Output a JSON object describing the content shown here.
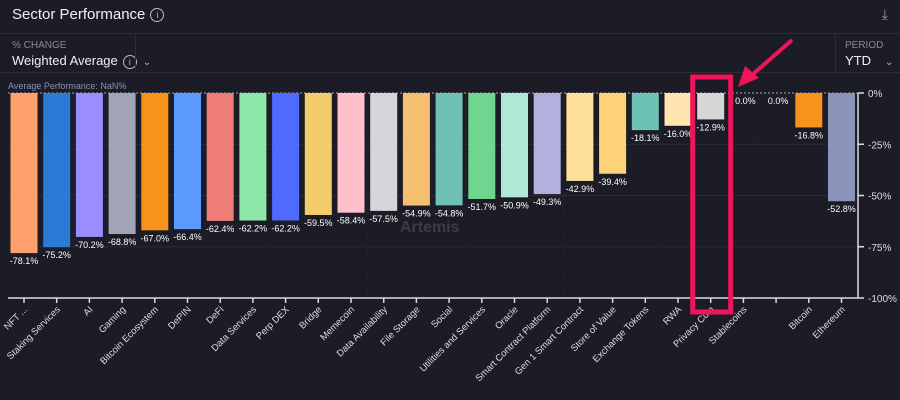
{
  "header": {
    "title": "Sector Performance",
    "info_icon": "info-icon",
    "download_icon": "download-icon"
  },
  "controls": {
    "change": {
      "label": "% CHANGE",
      "value": "Weighted Average"
    },
    "period": {
      "label": "PERIOD",
      "value": "YTD"
    }
  },
  "chart_data": {
    "type": "bar",
    "annotation": "Average Performance: NaN%",
    "ylim": [
      -100,
      0
    ],
    "yticks": [
      "0%",
      "-25%",
      "-50%",
      "-75%",
      "-100%"
    ],
    "ytick_values": [
      0,
      -25,
      -50,
      -75,
      -100
    ],
    "categories": [
      "NFT ...",
      "Staking Services",
      "AI",
      "Gaming",
      "Bitcoin Ecosystem",
      "DePIN",
      "DeFi",
      "Data Services",
      "Perp DEX",
      "Bridge",
      "Memecoin",
      "Data Availability",
      "File Storage",
      "Social",
      "Utilities and Services",
      "Oracle",
      "Smart Contract Platform",
      "Gen 1 Smart Contract",
      "Store of Value",
      "Exchange Tokens",
      "RWA",
      "Privacy Coin",
      "Stablecoins",
      "",
      "Bitcoin",
      "Ethereum"
    ],
    "values": [
      -78.1,
      -75.2,
      -70.2,
      -68.8,
      -67.0,
      -66.4,
      -62.4,
      -62.2,
      -62.2,
      -59.5,
      -58.4,
      -57.5,
      -54.9,
      -54.8,
      -51.7,
      -50.9,
      -49.3,
      -42.9,
      -39.4,
      -18.1,
      -16.0,
      -12.9,
      0.0,
      0.0,
      -16.8,
      -52.8
    ],
    "labels": [
      "-78.1%",
      "-75.2%",
      "-70.2%",
      "-68.8%",
      "-67.0%",
      "-66.4%",
      "-62.4%",
      "-62.2%",
      "-62.2%",
      "-59.5%",
      "-58.4%",
      "-57.5%",
      "-54.9%",
      "-54.8%",
      "-51.7%",
      "-50.9%",
      "-49.3%",
      "-42.9%",
      "-39.4%",
      "-18.1%",
      "-16.0%",
      "-12.9%",
      "0.0%",
      "0.0%",
      "-16.8%",
      "-52.8%"
    ],
    "colors": [
      "#ff9f6b",
      "#2b7bd6",
      "#9b8cff",
      "#a3a3b8",
      "#f7931a",
      "#5b9bff",
      "#f07c78",
      "#8ee6a8",
      "#4f6bff",
      "#f2cc6b",
      "#ffc0cb",
      "#d5d5d8",
      "#f4bf6f",
      "#6fc1b3",
      "#6fd68f",
      "#b0e8d8",
      "#b3b0dd",
      "#ffe09a",
      "#ffd27a",
      "#6cc3b5",
      "#ffe5b0",
      "#d6d6d6",
      "#888888",
      "#888888",
      "#f7931a",
      "#8a93b8"
    ],
    "highlight_category": "Privacy Coin",
    "highlight_color": "#f0145a",
    "watermark": "Artemis"
  }
}
